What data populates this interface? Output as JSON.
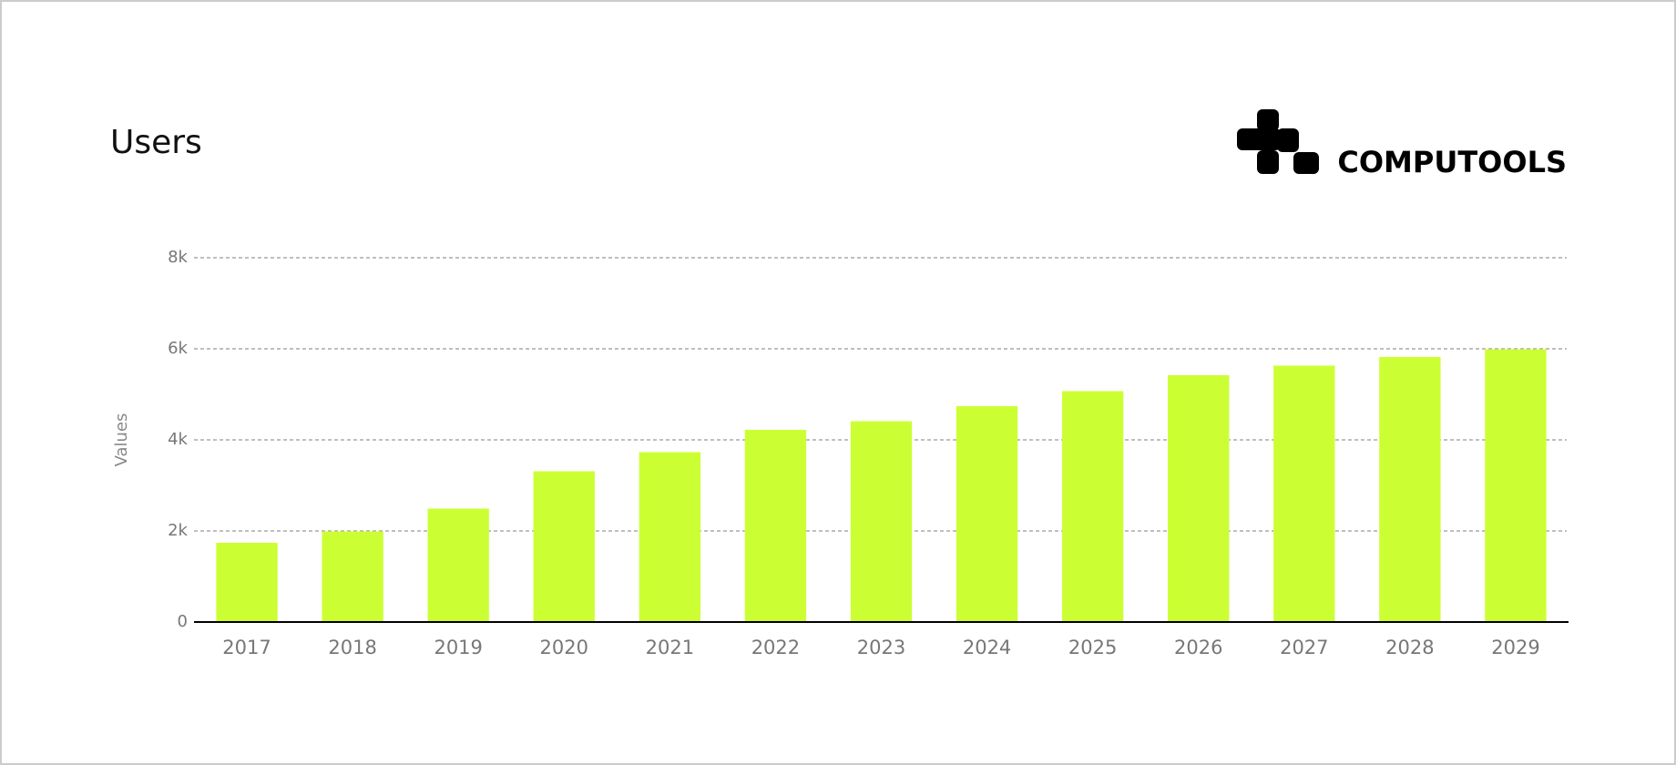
{
  "logo": {
    "text": "COMPUTOOLS"
  },
  "chart_data": {
    "type": "bar",
    "title": "Users",
    "y_label": "Values",
    "categories": [
      "2017",
      "2018",
      "2019",
      "2020",
      "2021",
      "2022",
      "2023",
      "2024",
      "2025",
      "2026",
      "2027",
      "2028",
      "2029"
    ],
    "values": [
      1740,
      1990,
      2490,
      3310,
      3730,
      4220,
      4410,
      4740,
      5070,
      5420,
      5630,
      5820,
      5990
    ],
    "color": "#ccff33",
    "ylim": [
      0,
      8000
    ],
    "yticks": [
      0,
      {
        "value": 2000,
        "label": "2k"
      },
      {
        "value": 4000,
        "label": "4k"
      },
      {
        "value": 6000,
        "label": "6k"
      },
      {
        "value": 8000,
        "label": "8k"
      }
    ],
    "grid": true
  }
}
